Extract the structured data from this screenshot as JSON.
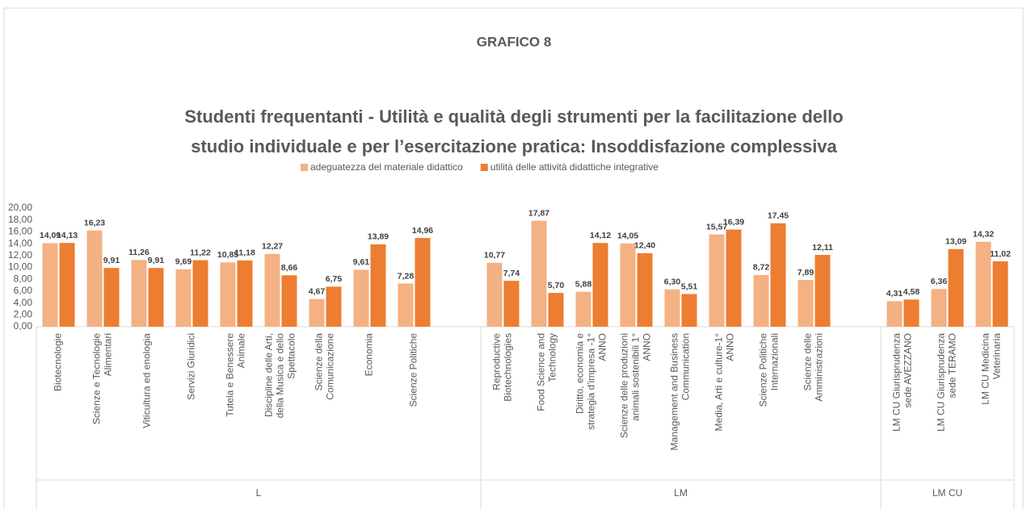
{
  "chart_data": {
    "type": "bar",
    "title": "GRAFICO 8",
    "subtitle": [
      "Studenti frequentanti - Utilità e qualità degli strumenti per la facilitazione dello",
      "studio individuale e per l’esercitazione pratica: Insoddisfazione complessiva"
    ],
    "categories": [
      "Biotecnologie",
      "Scienze e Tecnologie Alimentari",
      "Viticultura ed enologia",
      "Servizi Giuridici",
      "Tutela e Benessere Animale",
      "Discipline delle Arti, della Musica e dello Spettacolo",
      "Scienze della Comunicazione",
      "Economia",
      "Scienze Politiche",
      null,
      "Reproductive Biotechnologies",
      "Food Science and Technology",
      "Diritto, economia e strategia d'impresa -1° ANNO",
      "Scienze delle produzioni animali sostenibili 1° ANNO",
      "Management and Business Communication",
      "Media, Arti e culture-1° ANNO",
      "Scienze Politiche Internazionali",
      "Scienze delle Amministrazioni",
      null,
      "LM CU Giurisprudenza sede AVEZZANO",
      "LM CU Giurisprudenza sede TERAMO",
      "LM CU Medicina Veterinaria"
    ],
    "groups": [
      {
        "name": "L",
        "count": 10
      },
      {
        "name": "LM",
        "count": 9
      },
      {
        "name": "LM CU",
        "count": 3
      }
    ],
    "series": [
      {
        "name": "adeguatezza del materiale didattico",
        "color": "#f4b183",
        "values": [
          14.09,
          16.23,
          11.26,
          9.69,
          10.85,
          12.27,
          4.67,
          9.61,
          7.28,
          null,
          10.77,
          17.87,
          5.88,
          14.05,
          6.3,
          15.57,
          8.72,
          7.89,
          null,
          4.31,
          6.36,
          14.32
        ],
        "value_labels": [
          "14,09",
          "16,23",
          "11,26",
          "9,69",
          "10,85",
          "12,27",
          "4,67",
          "9,61",
          "7,28",
          null,
          "10,77",
          "17,87",
          "5,88",
          "14,05",
          "6,30",
          "15,57",
          "8,72",
          "7,89",
          null,
          "4,31",
          "6,36",
          "14,32"
        ]
      },
      {
        "name": "utilità delle attività didattiche integrative",
        "color": "#ed7d31",
        "values": [
          14.13,
          9.91,
          9.91,
          11.22,
          11.18,
          8.66,
          6.75,
          13.89,
          14.96,
          null,
          7.74,
          5.7,
          14.12,
          12.4,
          5.51,
          16.39,
          17.45,
          12.11,
          null,
          4.58,
          13.09,
          11.02
        ],
        "value_labels": [
          "14,13",
          "9,91",
          "9,91",
          "11,22",
          "11,18",
          "8,66",
          "6,75",
          "13,89",
          "14,96",
          null,
          "7,74",
          "5,70",
          "14,12",
          "12,40",
          "5,51",
          "16,39",
          "17,45",
          "12,11",
          null,
          "4,58",
          "13,09",
          "11,02"
        ]
      }
    ],
    "ylim": [
      0,
      20
    ],
    "yticks": [
      {
        "value": 0,
        "label": "0,00"
      },
      {
        "value": 2,
        "label": "2,00"
      },
      {
        "value": 4,
        "label": "4,00"
      },
      {
        "value": 6,
        "label": "6,00"
      },
      {
        "value": 8,
        "label": "8,00"
      },
      {
        "value": 10,
        "label": "10,00"
      },
      {
        "value": 12,
        "label": "12,00"
      },
      {
        "value": 14,
        "label": "14,00"
      },
      {
        "value": 16,
        "label": "16,00"
      },
      {
        "value": 18,
        "label": "18,00"
      },
      {
        "value": 20,
        "label": "20,00"
      }
    ],
    "legend": "top"
  }
}
